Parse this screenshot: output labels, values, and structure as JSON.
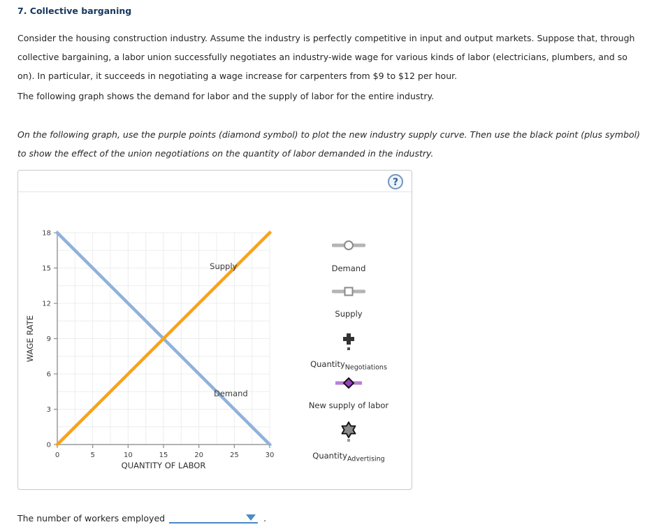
{
  "title": "7. Collective barganing",
  "paragraphs": {
    "p1": "Consider the housing construction industry. Assume the industry is perfectly competitive in input and output markets. Suppose that, through collective bargaining, a labor union successfully negotiates an industry-wide wage for various kinds of labor (electricians, plumbers, and so on). In particular, it succeeds in negotiating a wage increase for carpenters from $9 to $12 per hour.",
    "p2": "The following graph shows the demand for labor and the supply of labor for the entire industry.",
    "instruction": "On the following graph, use the purple points (diamond symbol) to plot the new industry supply curve. Then use the black point (plus symbol) to show the effect of the union negotiations on the quantity of labor demanded in the industry."
  },
  "panel": {
    "help_label": "?"
  },
  "legend": [
    {
      "label": "Demand",
      "marker": "slider-circle"
    },
    {
      "label": "Supply",
      "marker": "slider-square"
    },
    {
      "label": "Quantity",
      "subscript": "Negotiations",
      "marker": "plus-point"
    },
    {
      "label": "New supply of labor",
      "marker": "diamond-point"
    },
    {
      "label": "Quantity",
      "subscript": "Advertising",
      "marker": "star-point"
    }
  ],
  "footer": {
    "text": "The number of workers employed",
    "period": "."
  },
  "colors": {
    "title_navy": "#17375E",
    "demand_line": "#8FB2DB",
    "supply_line": "#F9A21D",
    "new_supply_purple": "#9743BE",
    "purple_line": "#BA7FD6",
    "dropdown_blue": "#4A87C6",
    "axis_gray": "#999999",
    "grid_gray": "#ededed"
  },
  "chart_data": {
    "type": "line",
    "title": "",
    "xlabel": "QUANTITY OF LABOR",
    "ylabel": "WAGE RATE",
    "xlim": [
      0,
      30
    ],
    "ylim": [
      0,
      18
    ],
    "xticks": [
      0,
      5,
      10,
      15,
      20,
      25,
      30
    ],
    "yticks": [
      0,
      3,
      6,
      9,
      12,
      15,
      18
    ],
    "minor_grid_x_step": 2.5,
    "minor_grid_y_step": 1.5,
    "grid": true,
    "legend_position": "right",
    "series": [
      {
        "name": "Demand",
        "x": [
          0,
          30
        ],
        "y": [
          18,
          0
        ],
        "color": "#8FB2DB"
      },
      {
        "name": "Supply",
        "x": [
          0,
          30
        ],
        "y": [
          0,
          18
        ],
        "color": "#F9A21D"
      }
    ],
    "annotations": [
      {
        "text": "Supply",
        "x": 25.4,
        "y": 14.9,
        "anchor": "end"
      },
      {
        "text": "Demand",
        "x": 22.1,
        "y": 4.1,
        "anchor": "start"
      }
    ]
  }
}
